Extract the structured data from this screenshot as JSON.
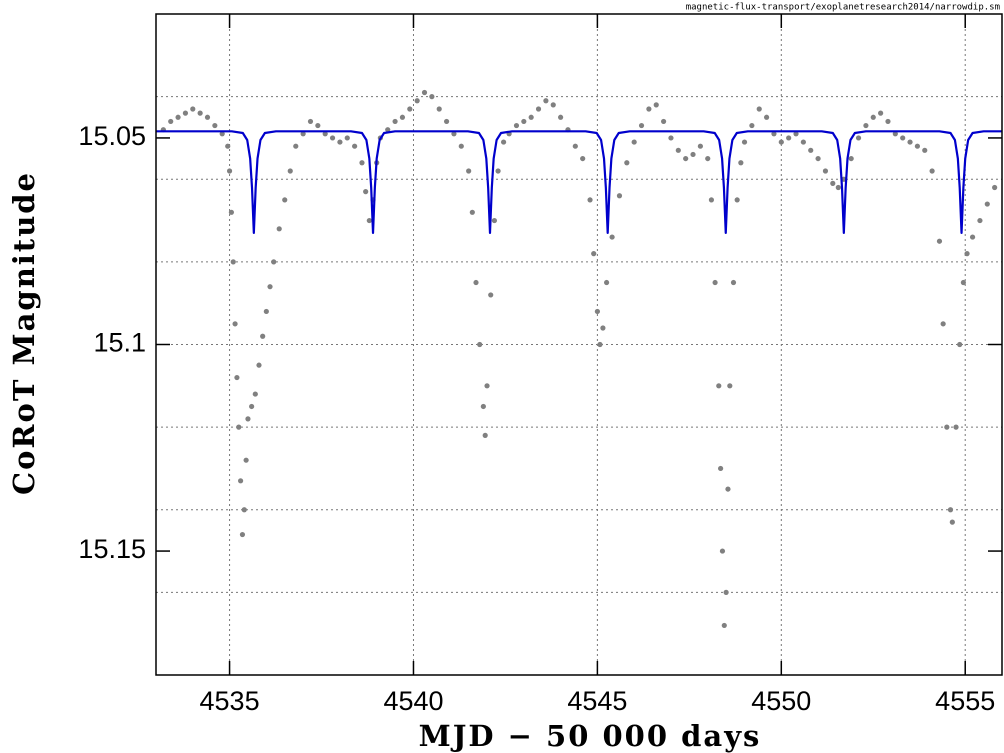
{
  "chart_data": {
    "type": "scatter",
    "note_text": "magnetic-flux-transport/exoplanetresearch2014/narrowdip.sm",
    "x_label": "MJD − 50 000 days",
    "y_label": "CoRoT Magnitude",
    "xlim": [
      4533,
      4556
    ],
    "xticks": [
      4535,
      4540,
      4545,
      4550,
      4555
    ],
    "ylim": [
      15.02,
      15.18
    ],
    "y_inverted": true,
    "yticks": [
      15.05,
      15.1,
      15.15
    ],
    "yminorticks": [
      15.04,
      15.06,
      15.08,
      15.1,
      15.12,
      15.14,
      15.16
    ],
    "grid": true,
    "series": [
      {
        "type": "scatter",
        "color": "#808080",
        "x": [
          4533.2,
          4533.4,
          4533.6,
          4533.8,
          4534.0,
          4534.2,
          4534.4,
          4534.6,
          4534.8,
          4534.95,
          4535.0,
          4535.05,
          4535.1,
          4535.15,
          4535.2,
          4535.25,
          4535.3,
          4535.35,
          4535.4,
          4535.45,
          4535.5,
          4535.6,
          4535.7,
          4535.8,
          4535.9,
          4536.0,
          4536.1,
          4536.2,
          4536.35,
          4536.5,
          4536.65,
          4536.8,
          4537.0,
          4537.2,
          4537.4,
          4537.6,
          4537.8,
          4538.0,
          4538.2,
          4538.4,
          4538.6,
          4538.7,
          4538.8,
          4538.9,
          4539.0,
          4539.1,
          4539.3,
          4539.5,
          4539.7,
          4539.9,
          4540.1,
          4540.3,
          4540.5,
          4540.7,
          4540.9,
          4541.1,
          4541.3,
          4541.5,
          4541.6,
          4541.7,
          4541.8,
          4541.9,
          4541.95,
          4542.0,
          4542.1,
          4542.2,
          4542.3,
          4542.45,
          4542.6,
          4542.8,
          4543.0,
          4543.2,
          4543.4,
          4543.6,
          4543.8,
          4544.0,
          4544.2,
          4544.4,
          4544.6,
          4544.8,
          4544.9,
          4545.0,
          4545.07,
          4545.15,
          4545.25,
          4545.4,
          4545.6,
          4545.8,
          4546.0,
          4546.2,
          4546.4,
          4546.6,
          4546.8,
          4547.0,
          4547.2,
          4547.4,
          4547.6,
          4547.8,
          4548.0,
          4548.1,
          4548.2,
          4548.3,
          4548.35,
          4548.4,
          4548.45,
          4548.5,
          4548.55,
          4548.6,
          4548.7,
          4548.8,
          4548.9,
          4549.0,
          4549.2,
          4549.4,
          4549.6,
          4549.8,
          4550.0,
          4550.2,
          4550.4,
          4550.6,
          4550.8,
          4551.0,
          4551.2,
          4551.4,
          4551.55,
          4551.7,
          4551.9,
          4552.1,
          4552.3,
          4552.5,
          4552.7,
          4552.9,
          4553.1,
          4553.3,
          4553.5,
          4553.7,
          4553.9,
          4554.1,
          4554.3,
          4554.4,
          4554.5,
          4554.6,
          4554.65,
          4554.75,
          4554.85,
          4554.95,
          4555.05,
          4555.2,
          4555.4,
          4555.6,
          4555.8
        ],
        "y": [
          15.048,
          15.046,
          15.045,
          15.044,
          15.043,
          15.044,
          15.045,
          15.047,
          15.049,
          15.052,
          15.058,
          15.068,
          15.08,
          15.095,
          15.108,
          15.12,
          15.133,
          15.146,
          15.14,
          15.128,
          15.118,
          15.115,
          15.112,
          15.105,
          15.098,
          15.092,
          15.086,
          15.08,
          15.072,
          15.065,
          15.058,
          15.052,
          15.049,
          15.046,
          15.047,
          15.049,
          15.05,
          15.051,
          15.05,
          15.052,
          15.056,
          15.063,
          15.07,
          15.065,
          15.056,
          15.05,
          15.048,
          15.046,
          15.045,
          15.043,
          15.041,
          15.039,
          15.04,
          15.043,
          15.046,
          15.049,
          15.052,
          15.058,
          15.068,
          15.085,
          15.1,
          15.115,
          15.122,
          15.11,
          15.088,
          15.07,
          15.058,
          15.051,
          15.049,
          15.047,
          15.046,
          15.045,
          15.043,
          15.041,
          15.042,
          15.045,
          15.048,
          15.052,
          15.055,
          15.065,
          15.078,
          15.092,
          15.1,
          15.096,
          15.085,
          15.074,
          15.064,
          15.056,
          15.051,
          15.047,
          15.043,
          15.042,
          15.046,
          15.05,
          15.053,
          15.055,
          15.054,
          15.052,
          15.055,
          15.065,
          15.085,
          15.11,
          15.13,
          15.15,
          15.168,
          15.16,
          15.135,
          15.11,
          15.085,
          15.065,
          15.056,
          15.051,
          15.047,
          15.043,
          15.045,
          15.049,
          15.051,
          15.05,
          15.049,
          15.051,
          15.053,
          15.055,
          15.058,
          15.061,
          15.062,
          15.06,
          15.055,
          15.05,
          15.047,
          15.045,
          15.044,
          15.046,
          15.049,
          15.05,
          15.051,
          15.052,
          15.053,
          15.058,
          15.075,
          15.095,
          15.12,
          15.14,
          15.143,
          15.12,
          15.1,
          15.085,
          15.078,
          15.074,
          15.07,
          15.066,
          15.062
        ]
      },
      {
        "type": "line",
        "color": "#0000cc",
        "x": [
          4533.0,
          4535.06,
          4535.36,
          4535.48,
          4535.56,
          4535.61,
          4535.66,
          4535.71,
          4535.76,
          4535.84,
          4535.96,
          4536.26,
          4538.3,
          4538.6,
          4538.72,
          4538.8,
          4538.85,
          4538.9,
          4538.95,
          4539.0,
          4539.08,
          4539.2,
          4539.5,
          4541.48,
          4541.78,
          4541.9,
          4541.98,
          4542.03,
          4542.08,
          4542.13,
          4542.18,
          4542.26,
          4542.38,
          4542.68,
          4544.68,
          4544.98,
          4545.1,
          4545.18,
          4545.23,
          4545.28,
          4545.33,
          4545.38,
          4545.46,
          4545.58,
          4545.88,
          4547.89,
          4548.19,
          4548.31,
          4548.39,
          4548.44,
          4548.49,
          4548.54,
          4548.59,
          4548.67,
          4548.79,
          4549.09,
          4551.1,
          4551.4,
          4551.52,
          4551.6,
          4551.65,
          4551.7,
          4551.75,
          4551.8,
          4551.88,
          4552.0,
          4552.3,
          4554.3,
          4554.6,
          4554.72,
          4554.8,
          4554.85,
          4554.9,
          4554.95,
          4555.0,
          4555.08,
          4555.2,
          4555.5,
          4556.0
        ],
        "y": [
          15.0484,
          15.0484,
          15.0488,
          15.0505,
          15.055,
          15.062,
          15.073,
          15.062,
          15.055,
          15.0505,
          15.0488,
          15.0484,
          15.0484,
          15.0488,
          15.0505,
          15.055,
          15.062,
          15.073,
          15.062,
          15.055,
          15.0505,
          15.0488,
          15.0484,
          15.0484,
          15.0488,
          15.0505,
          15.055,
          15.062,
          15.073,
          15.062,
          15.055,
          15.0505,
          15.0488,
          15.0484,
          15.0484,
          15.0488,
          15.0505,
          15.055,
          15.062,
          15.073,
          15.062,
          15.055,
          15.0505,
          15.0488,
          15.0484,
          15.0484,
          15.0488,
          15.0505,
          15.055,
          15.062,
          15.073,
          15.062,
          15.055,
          15.0505,
          15.0488,
          15.0484,
          15.0484,
          15.0488,
          15.0505,
          15.055,
          15.062,
          15.073,
          15.062,
          15.055,
          15.0505,
          15.0488,
          15.0484,
          15.0484,
          15.0488,
          15.0505,
          15.055,
          15.062,
          15.073,
          15.062,
          15.055,
          15.0505,
          15.0488,
          15.0484,
          15.0484
        ]
      }
    ]
  }
}
